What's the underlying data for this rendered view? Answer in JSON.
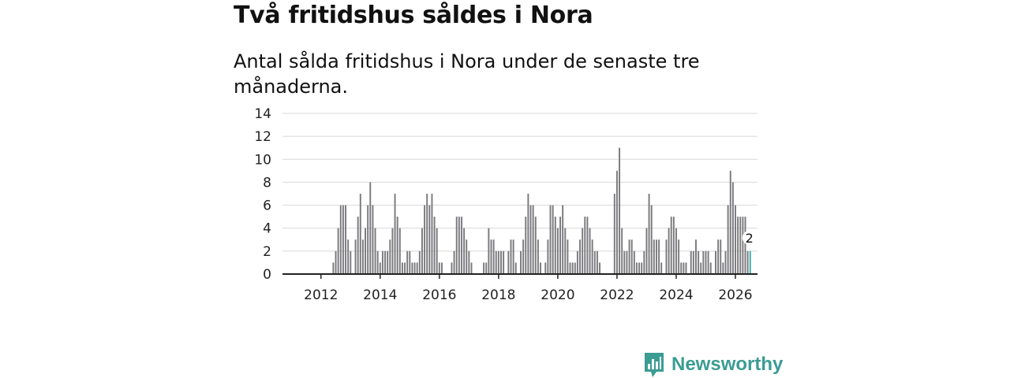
{
  "headline": "Två fritidshus såldes i Nora",
  "subtitle": "Antal sålda fritidshus i Nora under de senaste tre månaderna.",
  "brand": {
    "name": "Newsworthy",
    "color": "#3a9c93"
  },
  "chart_data": {
    "type": "bar",
    "title": "Antal sålda fritidshus i Nora under de senaste tre månaderna.",
    "xlabel": "",
    "ylabel": "",
    "ylim": [
      0,
      14
    ],
    "yticks": [
      "0",
      "2",
      "4",
      "6",
      "8",
      "10",
      "12",
      "14"
    ],
    "xticks": [
      "2012",
      "2014",
      "2016",
      "2018",
      "2020",
      "2022",
      "2024",
      "2026"
    ],
    "x_start": 2011.75,
    "period_years": 0.0833333,
    "bar_color": "#7a7a7e",
    "highlight_color": "#3aaea8",
    "highlight_label": "2",
    "values": [
      0,
      0,
      0,
      0,
      0,
      0,
      0,
      0,
      1,
      2,
      4,
      6,
      6,
      6,
      3,
      2,
      0,
      3,
      5,
      7,
      3,
      4,
      6,
      8,
      6,
      4,
      2,
      1,
      2,
      2,
      2,
      3,
      4,
      7,
      5,
      4,
      1,
      1,
      2,
      2,
      1,
      1,
      1,
      2,
      4,
      6,
      7,
      6,
      7,
      5,
      4,
      1,
      1,
      0,
      0,
      0,
      1,
      2,
      5,
      5,
      5,
      4,
      3,
      2,
      1,
      0,
      0,
      0,
      0,
      1,
      1,
      4,
      3,
      3,
      2,
      2,
      2,
      2,
      0,
      2,
      3,
      3,
      1,
      0,
      2,
      3,
      5,
      7,
      6,
      6,
      5,
      3,
      1,
      0,
      1,
      3,
      6,
      6,
      5,
      4,
      5,
      6,
      4,
      3,
      1,
      1,
      1,
      2,
      3,
      4,
      5,
      5,
      4,
      3,
      2,
      2,
      1,
      0,
      0,
      0,
      0,
      0,
      7,
      9,
      11,
      4,
      2,
      2,
      3,
      3,
      2,
      1,
      1,
      1,
      2,
      4,
      7,
      6,
      3,
      3,
      3,
      1,
      0,
      3,
      4,
      5,
      5,
      4,
      3,
      1,
      1,
      1,
      0,
      2,
      2,
      3,
      2,
      1,
      2,
      2,
      2,
      1,
      0,
      2,
      3,
      3,
      1,
      2,
      6,
      9,
      8,
      6,
      5,
      5,
      5,
      5,
      2,
      2
    ]
  }
}
